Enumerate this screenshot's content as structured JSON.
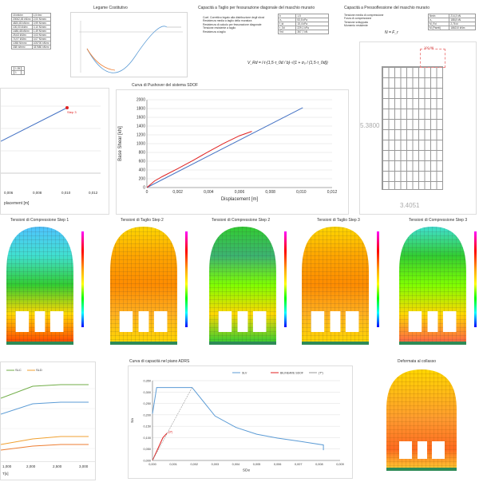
{
  "sections": {
    "legame": "Legame Costitutivo",
    "capacita_taglio": "Capacità a Taglio per fessurazione diagonale del maschio murario",
    "capacita_pressoflessione": "Capacità a Pressoflessione del maschio murario",
    "pushover": "Curva di Pushover del sistema SDOF",
    "adrs": "Curva di capacità nel piano ADRS",
    "deformata": "Deformata al collasso"
  },
  "material_table": [
    [
      "15 kN/m³",
      "1,5 t/m³"
    ],
    [
      "20062,45 kN/m²",
      "2,00 N/mm²"
    ],
    [
      "4820,80 kN/m²",
      "0,99 N/mm²"
    ],
    [
      "100,00 kN/m²",
      "0,10 N/mm²"
    ],
    [
      "1486,48 kN/m²",
      "1,49 N/mm²"
    ],
    [
      "25,63 kN/m²",
      "0,03 N/mm²"
    ],
    [
      "74,97 kN/m²",
      "0,07 N/mm²"
    ],
    [
      "1058 N/mm²",
      "105700 kN/m²"
    ],
    [
      "338 N/mm²",
      "337680 kN/m²"
    ]
  ],
  "material_extra": [
    [
      "",
      "1,35",
      "-"
    ],
    [
      "",
      "1",
      "-"
    ]
  ],
  "shear_labels": [
    "Coef. Correttivo legato alla distribuzione degli sforzi",
    "Resistenza media a taglio della muratura",
    "Resistenza di calcolo per fessurazione diagonale",
    "Tensione resistente a taglio",
    "Resistenza a taglio"
  ],
  "shear_table": [
    [
      "b",
      "1,5"
    ],
    [
      "σ₀",
      "53,5 kPa"
    ],
    [
      "f_td",
      "15,4 kPa"
    ],
    [
      "τ_0d",
      "229,1 kPa"
    ],
    [
      "Vrd",
      "367,7 kN"
    ]
  ],
  "shear_formula": "V_Rd = l·t·(1,5·τ_0d / b)·√(1 + σ₀ / (1,5·τ_0d))",
  "press_labels": [
    "Tensione media di compressione",
    "Forza di compressione",
    "Tensione sviluppata",
    "Momento resistente"
  ],
  "press_table": [
    [
      "Nmin",
      "214,3 kN"
    ],
    [
      "σ₀",
      "188,8 kN"
    ],
    [
      "M_Rd",
      "2,76 kl"
    ],
    [
      "M (Pareti)",
      "186210 kNm"
    ]
  ],
  "press_formula": "N = F_r",
  "wall_dims": {
    "height": "5.3800",
    "width": "3.4051",
    "top": "100,96"
  },
  "pushover_left": {
    "xlabel": "placement [m]",
    "xticks": [
      "0,006",
      "0,008",
      "0,010",
      "0,012"
    ],
    "step": "Step 3"
  },
  "pushover_main": {
    "ylabel": "Base Shear [kN]",
    "xlabel": "Displacement [m]"
  },
  "stress_titles": [
    "Tensioni di Compressione Step 1",
    "Tensioni di Taglio Step 2",
    "Tensioni di Compressione Step 2",
    "Tensioni di Taglio Step 3",
    "Tensioni di Compressione Step 3"
  ],
  "bilinear": {
    "legend": [
      "SLC",
      "SLD"
    ],
    "xlabel": "T[s]",
    "xticks": [
      "1,000",
      "2,000",
      "2,500",
      "3,000"
    ]
  },
  "adrs_chart_labels": {
    "legend": [
      "SLV",
      "BILINEARE SDOF",
      "(T*)"
    ],
    "xlabel": "SDe",
    "ylabel": "Sa",
    "point": "(d*)"
  },
  "chart_data": [
    {
      "type": "line",
      "title": "Curva di Pushover del sistema SDOF",
      "xlabel": "Displacement [m]",
      "ylabel": "Base Shear [kN]",
      "xlim": [
        0,
        0.012
      ],
      "ylim": [
        0,
        2000
      ],
      "xticks": [
        "0",
        "0,002",
        "0,004",
        "0,006",
        "0,008",
        "0,010",
        "0,012"
      ],
      "yticks": [
        "0",
        "200",
        "400",
        "600",
        "800",
        "1000",
        "1200",
        "1400",
        "1600",
        "1800",
        "2000"
      ],
      "grid": true,
      "series": [
        {
          "color": "#4472c4",
          "x": [
            0,
            0.0101
          ],
          "y": [
            0,
            1820
          ]
        },
        {
          "color": "#e02020",
          "x": [
            0,
            0.0005,
            0.001,
            0.002,
            0.003,
            0.004,
            0.005,
            0.006,
            0.0068
          ],
          "y": [
            0,
            150,
            250,
            430,
            620,
            820,
            1010,
            1180,
            1280
          ]
        }
      ]
    },
    {
      "type": "line",
      "title": "Curva di capacità nel piano ADRS",
      "xlabel": "SDe",
      "ylabel": "Sa",
      "xlim": [
        0,
        0.009
      ],
      "ylim": [
        0,
        0.35
      ],
      "xticks": [
        "0,000",
        "0,001",
        "0,002",
        "0,003",
        "0,004",
        "0,005",
        "0,006",
        "0,007",
        "0,008",
        "0,009"
      ],
      "yticks": [
        "0,000",
        "0,050",
        "0,100",
        "0,150",
        "0,200",
        "0,250",
        "0,300",
        "0,350"
      ],
      "grid": true,
      "series": [
        {
          "name": "SLV",
          "color": "#5b9bd5",
          "x": [
            0,
            0.0002,
            0.0019,
            0.003,
            0.004,
            0.005,
            0.006,
            0.007,
            0.0082,
            0.0082
          ],
          "y": [
            0.205,
            0.32,
            0.32,
            0.195,
            0.145,
            0.115,
            0.098,
            0.085,
            0.068,
            0.045
          ]
        },
        {
          "name": "BILINEARE SDOF",
          "color": "#e02020",
          "x": [
            0,
            0.00015,
            0.0003,
            0.0005,
            0.0007
          ],
          "y": [
            0,
            0.03,
            0.06,
            0.1,
            0.12
          ]
        },
        {
          "name": "(T*)",
          "color": "#999999",
          "x": [
            0,
            0.0019
          ],
          "y": [
            0,
            0.32
          ]
        }
      ]
    },
    {
      "type": "line",
      "title": "",
      "xlabel": "T[s]",
      "xlim": [
        0.9,
        3.0
      ],
      "ylim": [
        0,
        1
      ],
      "xticks": [
        "1,000",
        "2,000",
        "2,500",
        "3,000"
      ],
      "series": [
        {
          "name": "SLC",
          "color": "#70ad47",
          "x": [
            0.9,
            1.6,
            2.1,
            3.0
          ],
          "y": [
            0.65,
            0.9,
            0.98,
            0.98
          ]
        },
        {
          "name": "SLD",
          "color": "#f0a030",
          "x": [
            0.9,
            1.6,
            2.1,
            3.0
          ],
          "y": [
            0.25,
            0.34,
            0.38,
            0.38
          ]
        },
        {
          "color": "#5b9bd5",
          "x": [
            0.9,
            1.6,
            2.1,
            3.0
          ],
          "y": [
            0.55,
            0.74,
            0.78,
            0.78
          ]
        },
        {
          "color": "#ed7d31",
          "x": [
            0.9,
            1.6,
            2.1,
            3.0
          ],
          "y": [
            0.15,
            0.24,
            0.28,
            0.28
          ]
        }
      ]
    }
  ]
}
